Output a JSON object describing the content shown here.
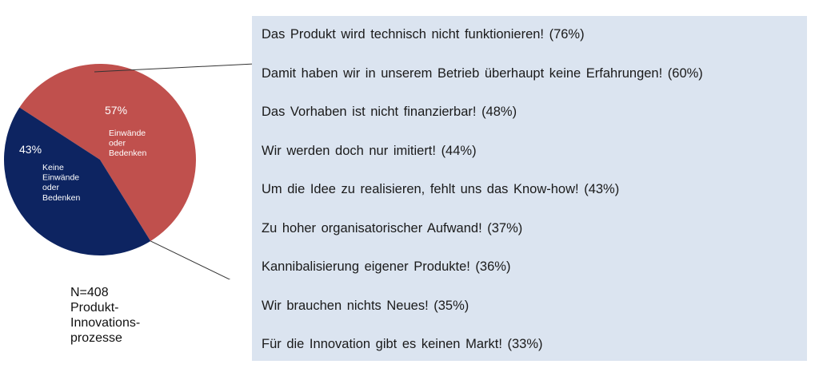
{
  "chart_data": {
    "type": "pie",
    "slices": [
      {
        "pct_label": "57%",
        "value": 57,
        "label_lines": [
          "Einwände",
          "oder",
          "Bedenken"
        ],
        "color": "#c0504d"
      },
      {
        "pct_label": "43%",
        "value": 43,
        "label_lines": [
          "Keine",
          "Einwände",
          "oder",
          "Bedenken"
        ],
        "color": "#0d2461"
      }
    ],
    "objections": [
      "Das Produkt wird technisch nicht funktionieren! (76%)",
      "Damit haben wir in unserem Betrieb überhaupt keine Erfahrungen! (60%)",
      "Das Vorhaben ist nicht finanzierbar! (48%)",
      "Wir werden doch nur imitiert! (44%)",
      "Um die Idee zu realisieren, fehlt uns das Know-how! (43%)",
      "Zu hoher organisatorischer Aufwand! (37%)",
      "Kannibalisierung eigener Produkte! (36%)",
      "Wir brauchen nichts Neues! (35%)",
      "Für die Innovation gibt es keinen Markt! (33%)"
    ],
    "panel_color": "#dbe4f0",
    "note_lines": [
      "N=408",
      "Produkt-",
      "Innovations-",
      "prozesse"
    ]
  }
}
